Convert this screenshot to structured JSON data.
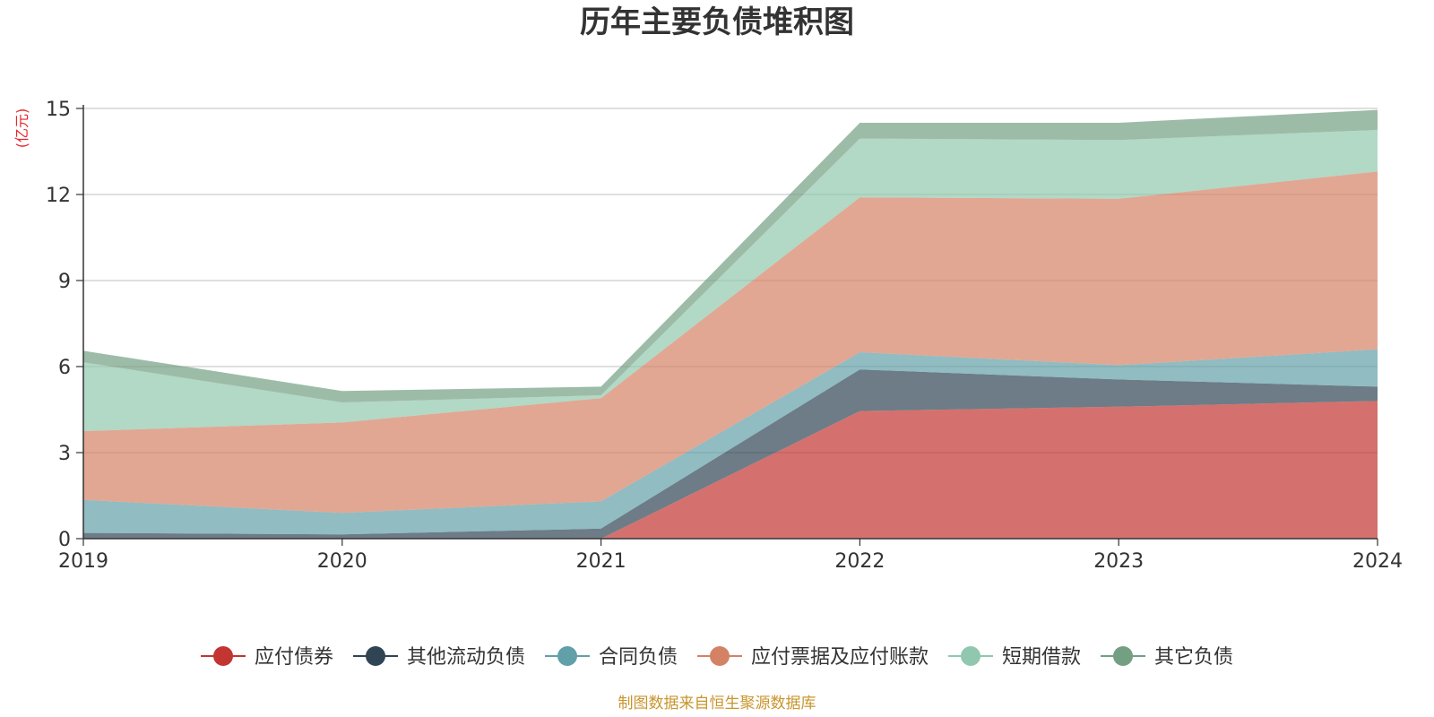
{
  "chart_data": {
    "type": "area",
    "stacked": true,
    "title": "历年主要负债堆积图",
    "unit_label": "(亿元)",
    "x": [
      "2019",
      "2020",
      "2021",
      "2022",
      "2023",
      "2024"
    ],
    "ylim": [
      0,
      15
    ],
    "yticks": [
      "0",
      "3",
      "6",
      "9",
      "12",
      "15"
    ],
    "grid": true,
    "legend_position": "bottom",
    "series": [
      {
        "name": "应付债券",
        "color": "#c23531",
        "values": [
          0,
          0,
          0,
          4.45,
          4.6,
          4.8
        ]
      },
      {
        "name": "其他流动负债",
        "color": "#2f4554",
        "values": [
          0.2,
          0.15,
          0.35,
          1.45,
          0.95,
          0.5
        ]
      },
      {
        "name": "合同负债",
        "color": "#61a0a8",
        "values": [
          1.15,
          0.75,
          0.95,
          0.6,
          0.5,
          1.3
        ]
      },
      {
        "name": "应付票据及应付账款",
        "color": "#d48265",
        "values": [
          2.4,
          3.15,
          3.6,
          5.4,
          5.8,
          6.2
        ]
      },
      {
        "name": "短期借款",
        "color": "#91c7ae",
        "values": [
          2.4,
          0.7,
          0.1,
          2.05,
          2.05,
          1.45
        ]
      },
      {
        "name": "其它负债",
        "color": "#749f83",
        "values": [
          0.4,
          0.4,
          0.3,
          0.55,
          0.6,
          0.7
        ]
      }
    ]
  },
  "footer": {
    "source": "制图数据来自恒生聚源数据库"
  }
}
